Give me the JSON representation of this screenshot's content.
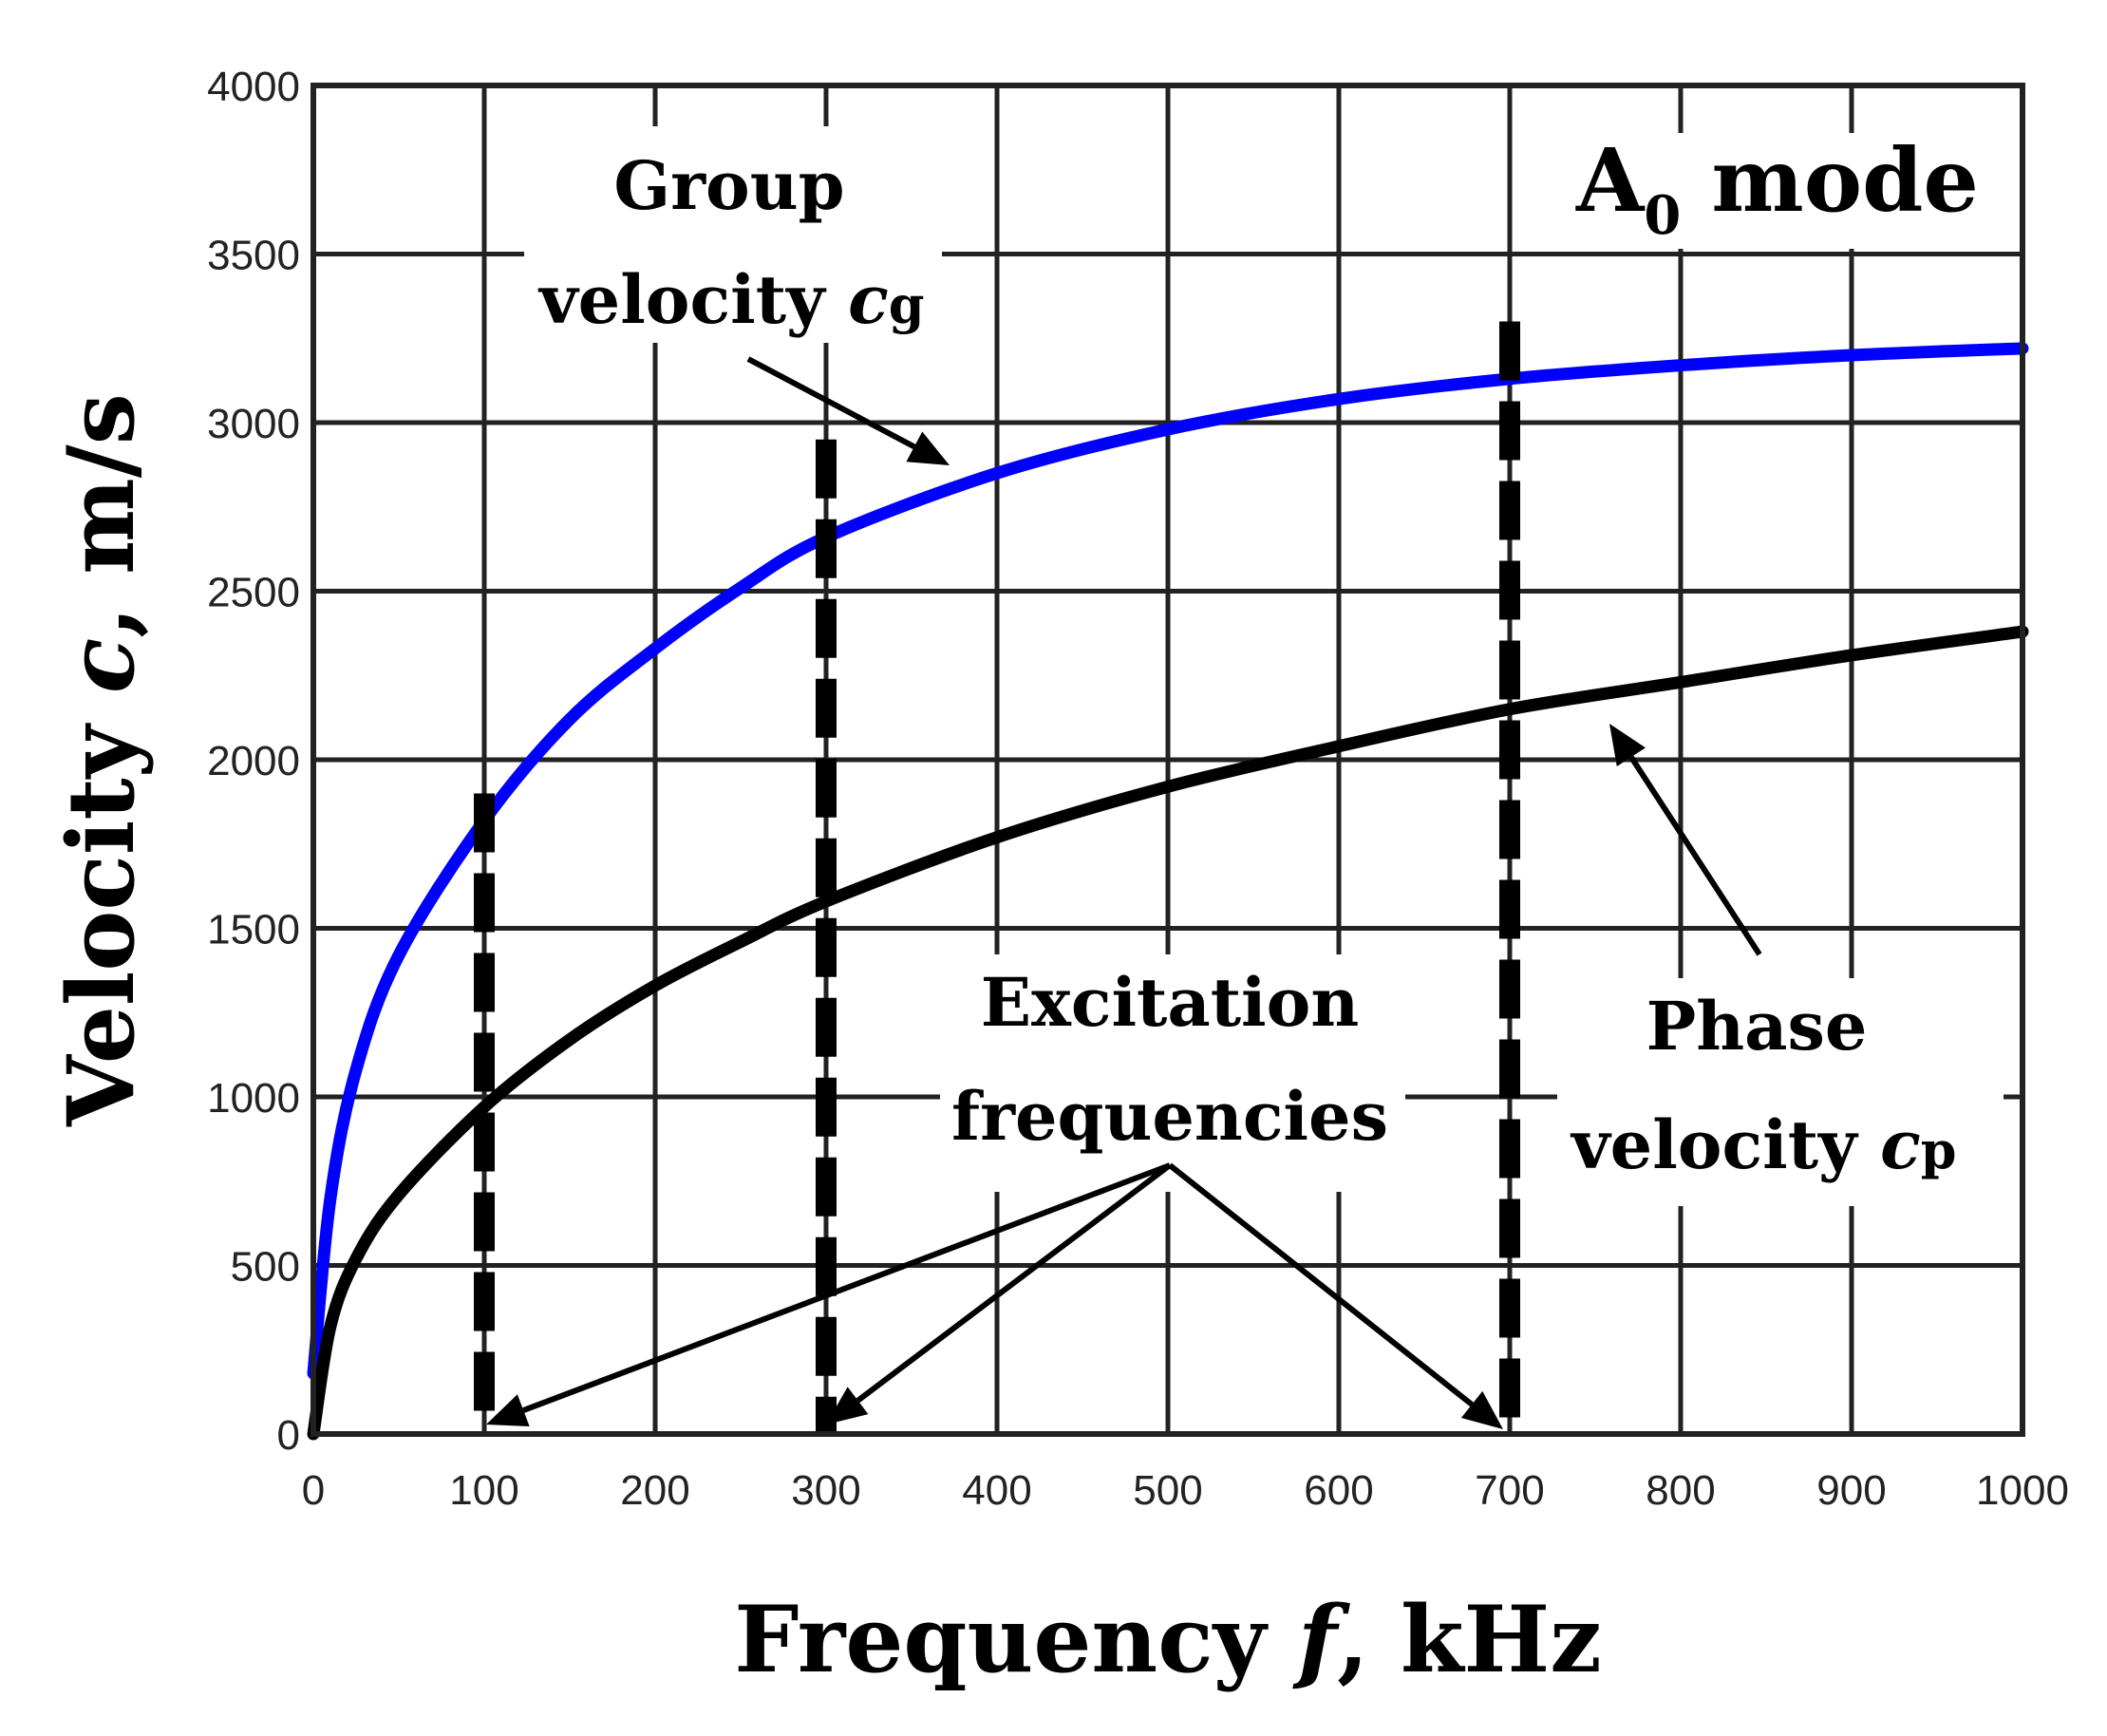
{
  "chart_data": {
    "type": "line",
    "title": "A0 mode",
    "title_main": "A",
    "title_sub": "0",
    "title_rest": " mode",
    "xlabel": "Frequency",
    "xlabel_var": "f",
    "xlabel_unit": ", kHz",
    "ylabel": "Velocity",
    "ylabel_var": "c",
    "ylabel_unit": ", m/s",
    "xlim": [
      0,
      1000
    ],
    "ylim": [
      0,
      4000
    ],
    "xticks": [
      "0",
      "100",
      "200",
      "300",
      "400",
      "500",
      "600",
      "700",
      "800",
      "900",
      "1000"
    ],
    "yticks": [
      "0",
      "500",
      "1000",
      "1500",
      "2000",
      "2500",
      "3000",
      "3500",
      "4000"
    ],
    "grid": true,
    "x": [
      0,
      10,
      25,
      50,
      100,
      150,
      200,
      250,
      300,
      400,
      500,
      600,
      700,
      800,
      900,
      1000
    ],
    "series": [
      {
        "name": "Group velocity cg",
        "color": "#0000ff",
        "values": [
          180,
          700,
          1080,
          1420,
          1820,
          2120,
          2330,
          2510,
          2660,
          2850,
          2980,
          3070,
          3130,
          3170,
          3200,
          3220
        ]
      },
      {
        "name": "Phase velocity cp",
        "color": "#000000",
        "values": [
          0,
          320,
          520,
          710,
          970,
          1170,
          1330,
          1460,
          1580,
          1770,
          1920,
          2040,
          2150,
          2230,
          2310,
          2380
        ]
      }
    ],
    "excitation_frequencies": [
      100,
      300,
      700
    ],
    "annotations": {
      "group_line1": "Group",
      "group_line2": "velocity",
      "group_var": "c",
      "group_sub": "g",
      "phase_line1": "Phase",
      "phase_line2": "velocity",
      "phase_var": "c",
      "phase_sub": "p",
      "excitation_line1": "Excitation",
      "excitation_line2": "frequencies"
    }
  }
}
